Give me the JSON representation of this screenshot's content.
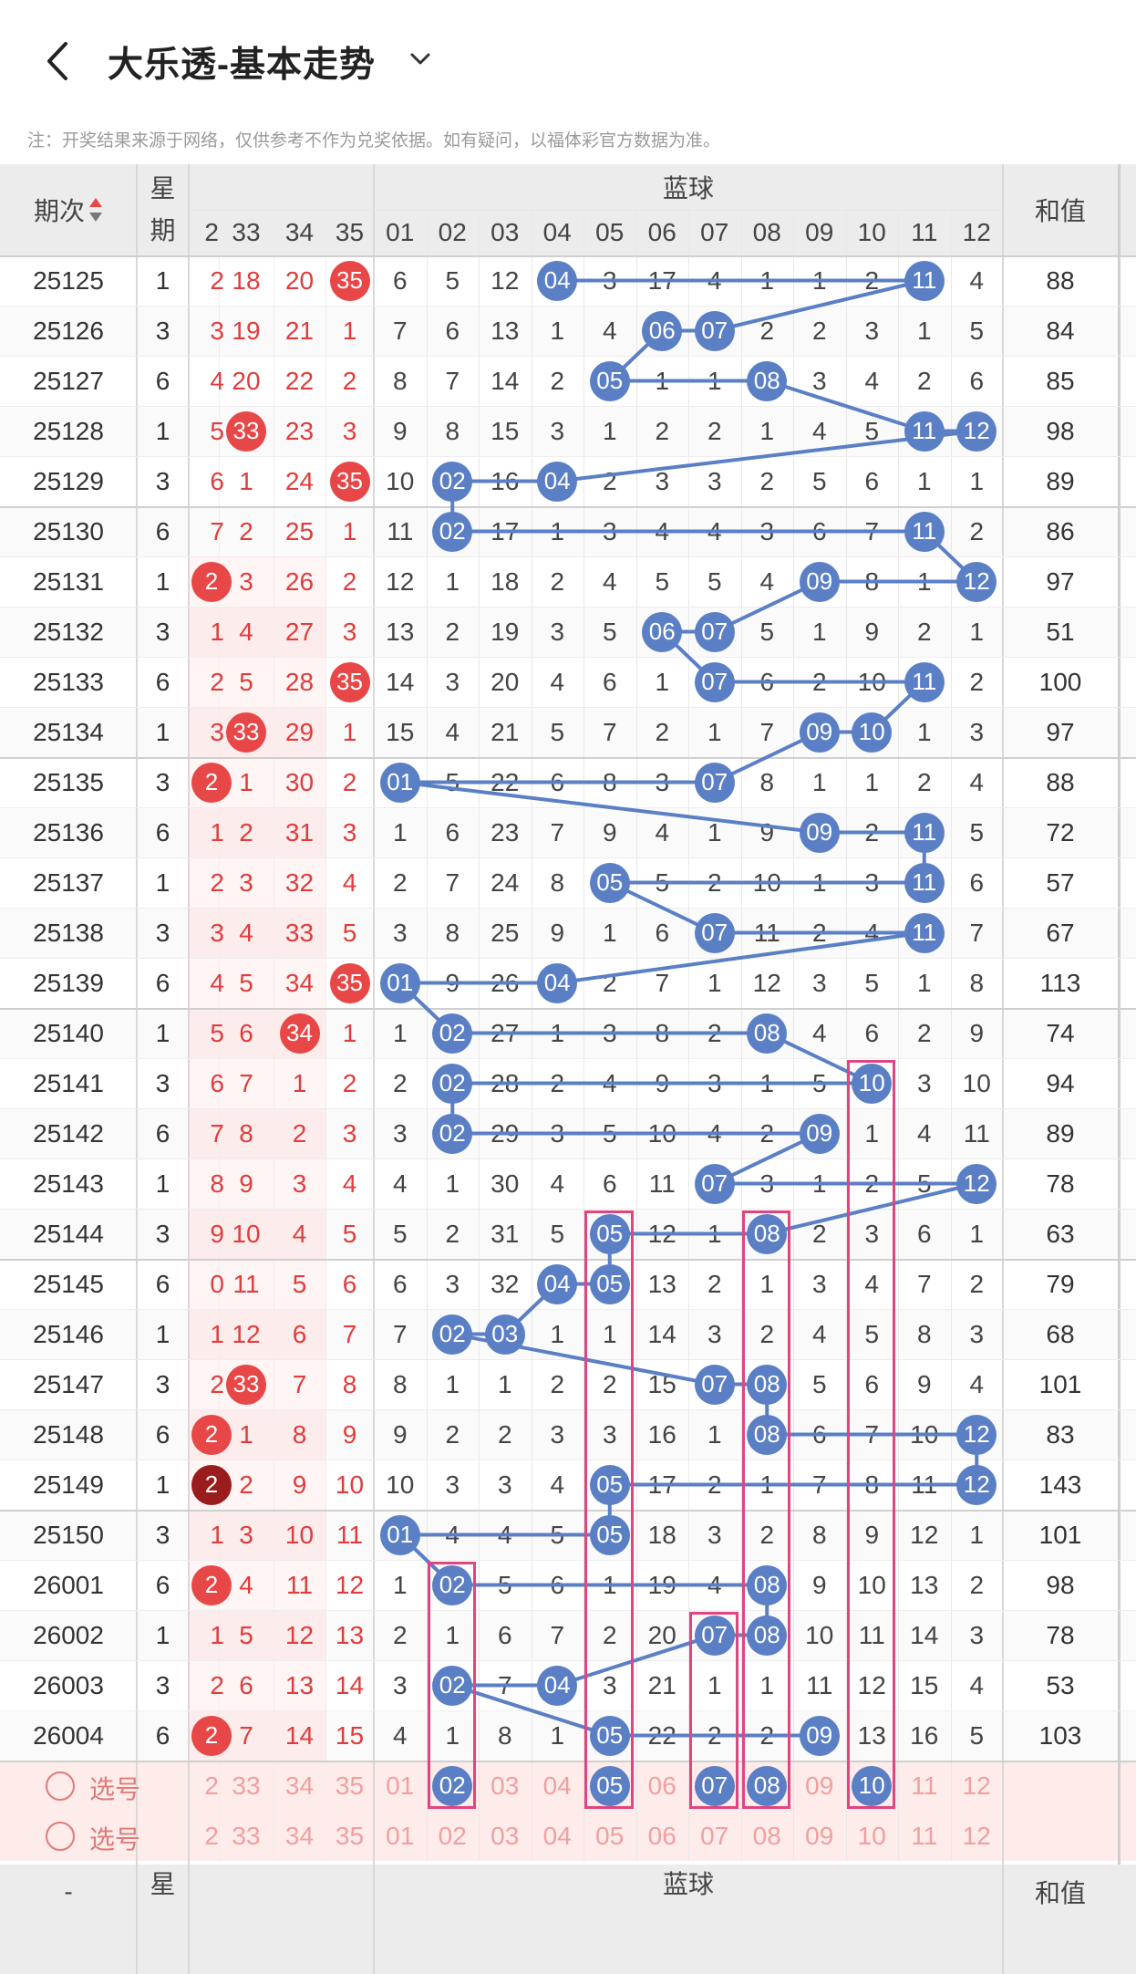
{
  "app": {
    "title": "大乐透-基本走势",
    "notice": "注：开奖结果来源于网络，仅供参考不作为兑奖依据。如有疑问，以福体彩官方数据为准。"
  },
  "icons": {
    "back": "chevron-left-icon",
    "dropdown": "chevron-down-icon",
    "sort": "sort-arrows-icon",
    "select": "radio-circle-icon"
  },
  "colors": {
    "blue_ball": "#5b7fc5",
    "red_ball": "#e84747",
    "dark_red_ball": "#9b1c1c",
    "red_text": "#e03c3c",
    "highlight_box": "#e0457f",
    "header_bg": "#ececec",
    "select_row_bg": "#fdece9"
  },
  "table": {
    "header": {
      "period": "期次",
      "weekday": "星期",
      "blue_group": "蓝球",
      "sum": "和值",
      "red_partial_col": "2",
      "red_cols": [
        "33",
        "34",
        "35"
      ],
      "blue_cols": [
        "01",
        "02",
        "03",
        "04",
        "05",
        "06",
        "07",
        "08",
        "09",
        "10",
        "11",
        "12"
      ]
    },
    "rows": [
      {
        "period": "25125",
        "weekday": "1",
        "red": [
          "2",
          "18",
          "20",
          "35"
        ],
        "red_hit": [
          false,
          false,
          false,
          true
        ],
        "blue": [
          "04",
          "3",
          "17",
          "4",
          "1",
          "1",
          "2",
          "11",
          "4"
        ],
        "sum": "88"
      },
      {
        "period": "25126",
        "weekday": "3",
        "red": [
          "3",
          "19",
          "21",
          "1"
        ],
        "sum": "84"
      },
      {
        "period": "25127",
        "weekday": "6",
        "red": [
          "4",
          "20",
          "22",
          "2"
        ],
        "sum": "85"
      },
      {
        "period": "25128",
        "weekday": "1",
        "red": [
          "5",
          "33",
          "23",
          "3"
        ],
        "sum": "98"
      },
      {
        "period": "25129",
        "weekday": "3",
        "red": [
          "6",
          "1",
          "24",
          "35"
        ],
        "sum": "89"
      },
      {
        "period": "25130",
        "weekday": "6",
        "red": [
          "7",
          "2",
          "25",
          "1"
        ],
        "sum": "86"
      },
      {
        "period": "25131",
        "weekday": "1",
        "red": [
          "2",
          "3",
          "26",
          "2"
        ],
        "sum": "97"
      },
      {
        "period": "25132",
        "weekday": "3",
        "red": [
          "1",
          "4",
          "27",
          "3"
        ],
        "sum": "51"
      },
      {
        "period": "25133",
        "weekday": "6",
        "red": [
          "2",
          "5",
          "28",
          "35"
        ],
        "sum": "100"
      },
      {
        "period": "25134",
        "weekday": "1",
        "red": [
          "3",
          "33",
          "29",
          "1"
        ],
        "sum": "97"
      },
      {
        "period": "25135",
        "weekday": "3",
        "red": [
          "2",
          "1",
          "30",
          "2"
        ],
        "sum": "88"
      },
      {
        "period": "25136",
        "weekday": "6",
        "red": [
          "1",
          "2",
          "31",
          "3"
        ],
        "sum": "72"
      },
      {
        "period": "25137",
        "weekday": "1",
        "red": [
          "2",
          "3",
          "32",
          "4"
        ],
        "sum": "57"
      },
      {
        "period": "25138",
        "weekday": "3",
        "red": [
          "3",
          "4",
          "33",
          "5"
        ],
        "sum": "67"
      },
      {
        "period": "25139",
        "weekday": "6",
        "red": [
          "4",
          "5",
          "34",
          "35"
        ],
        "sum": "113"
      },
      {
        "period": "25140",
        "weekday": "1",
        "red": [
          "5",
          "6",
          "34",
          "1"
        ],
        "sum": "74"
      },
      {
        "period": "25141",
        "weekday": "3",
        "red": [
          "6",
          "7",
          "1",
          "2"
        ],
        "sum": "94"
      },
      {
        "period": "25142",
        "weekday": "6",
        "red": [
          "7",
          "8",
          "2",
          "3"
        ],
        "sum": "89"
      },
      {
        "period": "25143",
        "weekday": "1",
        "red": [
          "8",
          "9",
          "3",
          "4"
        ],
        "sum": "78"
      },
      {
        "period": "25144",
        "weekday": "3",
        "red": [
          "9",
          "10",
          "4",
          "5"
        ],
        "sum": "63"
      },
      {
        "period": "25145",
        "weekday": "6",
        "red": [
          "0",
          "11",
          "5",
          "6"
        ],
        "sum": "79"
      },
      {
        "period": "25146",
        "weekday": "1",
        "red": [
          "1",
          "12",
          "6",
          "7"
        ],
        "sum": "68"
      },
      {
        "period": "25147",
        "weekday": "3",
        "red": [
          "2",
          "33",
          "7",
          "8"
        ],
        "sum": "101"
      },
      {
        "period": "25148",
        "weekday": "6",
        "red": [
          "2",
          "1",
          "8",
          "9"
        ],
        "sum": "83"
      },
      {
        "period": "25149",
        "weekday": "1",
        "red": [
          "2",
          "2",
          "9",
          "10"
        ],
        "sum": "143"
      },
      {
        "period": "25150",
        "weekday": "3",
        "red": [
          "1",
          "3",
          "10",
          "11"
        ],
        "sum": "101"
      },
      {
        "period": "26001",
        "weekday": "6",
        "red": [
          "2",
          "4",
          "11",
          "12"
        ],
        "sum": "98"
      },
      {
        "period": "26002",
        "weekday": "1",
        "red": [
          "1",
          "5",
          "12",
          "13"
        ],
        "sum": "78"
      },
      {
        "period": "26003",
        "weekday": "3",
        "red": [
          "2",
          "6",
          "13",
          "14"
        ],
        "sum": "53"
      },
      {
        "period": "26004",
        "weekday": "6",
        "red": [
          "2",
          "7",
          "14",
          "15"
        ],
        "sum": "103"
      }
    ],
    "blue_matrix": [
      [
        "6",
        "5",
        "12",
        "04",
        "3",
        "17",
        "4",
        "1",
        "1",
        "2",
        "11",
        "4"
      ],
      [
        "7",
        "6",
        "13",
        "1",
        "4",
        "06",
        "07",
        "2",
        "2",
        "3",
        "1",
        "5"
      ],
      [
        "8",
        "7",
        "14",
        "2",
        "05",
        "1",
        "1",
        "08",
        "3",
        "4",
        "2",
        "6"
      ],
      [
        "9",
        "8",
        "15",
        "3",
        "1",
        "2",
        "2",
        "1",
        "4",
        "5",
        "11",
        "12"
      ],
      [
        "10",
        "02",
        "16",
        "04",
        "2",
        "3",
        "3",
        "2",
        "5",
        "6",
        "1",
        "1"
      ],
      [
        "11",
        "02",
        "17",
        "1",
        "3",
        "4",
        "4",
        "3",
        "6",
        "7",
        "11",
        "2"
      ],
      [
        "12",
        "1",
        "18",
        "2",
        "4",
        "5",
        "5",
        "4",
        "09",
        "8",
        "1",
        "12"
      ],
      [
        "13",
        "2",
        "19",
        "3",
        "5",
        "06",
        "07",
        "5",
        "1",
        "9",
        "2",
        "1"
      ],
      [
        "14",
        "3",
        "20",
        "4",
        "6",
        "1",
        "07",
        "6",
        "2",
        "10",
        "11",
        "2"
      ],
      [
        "15",
        "4",
        "21",
        "5",
        "7",
        "2",
        "1",
        "7",
        "09",
        "10",
        "1",
        "3"
      ],
      [
        "01",
        "5",
        "22",
        "6",
        "8",
        "3",
        "07",
        "8",
        "1",
        "1",
        "2",
        "4"
      ],
      [
        "1",
        "6",
        "23",
        "7",
        "9",
        "4",
        "1",
        "9",
        "09",
        "2",
        "11",
        "5"
      ],
      [
        "2",
        "7",
        "24",
        "8",
        "05",
        "5",
        "2",
        "10",
        "1",
        "3",
        "11",
        "6"
      ],
      [
        "3",
        "8",
        "25",
        "9",
        "1",
        "6",
        "07",
        "11",
        "2",
        "4",
        "11",
        "7"
      ],
      [
        "01",
        "9",
        "26",
        "04",
        "2",
        "7",
        "1",
        "12",
        "3",
        "5",
        "1",
        "8"
      ],
      [
        "1",
        "02",
        "27",
        "1",
        "3",
        "8",
        "2",
        "08",
        "4",
        "6",
        "2",
        "9"
      ],
      [
        "2",
        "02",
        "28",
        "2",
        "4",
        "9",
        "3",
        "1",
        "5",
        "10",
        "3",
        "10"
      ],
      [
        "3",
        "02",
        "29",
        "3",
        "5",
        "10",
        "4",
        "2",
        "09",
        "1",
        "4",
        "11"
      ],
      [
        "4",
        "1",
        "30",
        "4",
        "6",
        "11",
        "07",
        "3",
        "1",
        "2",
        "5",
        "12"
      ],
      [
        "5",
        "2",
        "31",
        "5",
        "05",
        "12",
        "1",
        "08",
        "2",
        "3",
        "6",
        "1"
      ],
      [
        "6",
        "3",
        "32",
        "04",
        "05",
        "13",
        "2",
        "1",
        "3",
        "4",
        "7",
        "2"
      ],
      [
        "7",
        "02",
        "03",
        "1",
        "1",
        "14",
        "3",
        "2",
        "4",
        "5",
        "8",
        "3"
      ],
      [
        "8",
        "1",
        "1",
        "2",
        "2",
        "15",
        "07",
        "08",
        "5",
        "6",
        "9",
        "4"
      ],
      [
        "9",
        "2",
        "2",
        "3",
        "3",
        "16",
        "1",
        "08",
        "6",
        "7",
        "10",
        "12"
      ],
      [
        "10",
        "3",
        "3",
        "4",
        "05",
        "17",
        "2",
        "1",
        "7",
        "8",
        "11",
        "12"
      ],
      [
        "01",
        "4",
        "4",
        "5",
        "05",
        "18",
        "3",
        "2",
        "8",
        "9",
        "12",
        "1"
      ],
      [
        "1",
        "02",
        "5",
        "6",
        "1",
        "19",
        "4",
        "08",
        "9",
        "10",
        "13",
        "2"
      ],
      [
        "2",
        "1",
        "6",
        "7",
        "2",
        "20",
        "07",
        "08",
        "10",
        "11",
        "14",
        "3"
      ],
      [
        "3",
        "02",
        "7",
        "04",
        "3",
        "21",
        "1",
        "1",
        "11",
        "12",
        "15",
        "4"
      ],
      [
        "4",
        "1",
        "8",
        "1",
        "05",
        "22",
        "2",
        "2",
        "09",
        "13",
        "16",
        "5"
      ]
    ],
    "blue_hits": [
      [
        3,
        10
      ],
      [
        5,
        6
      ],
      [
        4,
        7
      ],
      [
        10,
        11
      ],
      [
        1,
        3
      ],
      [
        1,
        10
      ],
      [
        8,
        11
      ],
      [
        5,
        6
      ],
      [
        6,
        10
      ],
      [
        8,
        9
      ],
      [
        0,
        6
      ],
      [
        8,
        10
      ],
      [
        4,
        10
      ],
      [
        6,
        10
      ],
      [
        0,
        3
      ],
      [
        1,
        7
      ],
      [
        1,
        9
      ],
      [
        1,
        8
      ],
      [
        6,
        11
      ],
      [
        4,
        7
      ],
      [
        3,
        4
      ],
      [
        1,
        2
      ],
      [
        6,
        7
      ],
      [
        7,
        11
      ],
      [
        4,
        11
      ],
      [
        0,
        4
      ],
      [
        1,
        7
      ],
      [
        6,
        7
      ],
      [
        1,
        3
      ],
      [
        4,
        8
      ]
    ],
    "red_hits": [
      [
        false,
        false,
        false,
        true
      ],
      [
        false,
        false,
        false,
        false
      ],
      [
        false,
        false,
        false,
        false
      ],
      [
        false,
        true,
        false,
        false
      ],
      [
        false,
        false,
        false,
        true
      ],
      [
        false,
        false,
        false,
        false
      ],
      [
        true,
        false,
        false,
        false
      ],
      [
        false,
        false,
        false,
        false
      ],
      [
        false,
        false,
        false,
        true
      ],
      [
        false,
        true,
        false,
        false
      ],
      [
        true,
        false,
        false,
        false
      ],
      [
        false,
        false,
        false,
        false
      ],
      [
        false,
        false,
        false,
        false
      ],
      [
        false,
        false,
        false,
        false
      ],
      [
        false,
        false,
        false,
        true
      ],
      [
        false,
        false,
        true,
        false
      ],
      [
        false,
        false,
        false,
        false
      ],
      [
        false,
        false,
        false,
        false
      ],
      [
        false,
        false,
        false,
        false
      ],
      [
        false,
        false,
        false,
        false
      ],
      [
        false,
        false,
        false,
        false
      ],
      [
        false,
        false,
        false,
        false
      ],
      [
        false,
        true,
        false,
        false
      ],
      [
        true,
        false,
        false,
        false
      ],
      [
        true,
        false,
        false,
        false
      ],
      [
        false,
        false,
        false,
        false
      ],
      [
        true,
        false,
        false,
        false
      ],
      [
        false,
        false,
        false,
        false
      ],
      [
        false,
        false,
        false,
        false
      ],
      [
        true,
        false,
        false,
        false
      ]
    ],
    "selection_rows": [
      {
        "label": "选号",
        "red": [
          "2",
          "33",
          "34",
          "35"
        ],
        "selected_blue": [
          "02",
          "05",
          "07",
          "08",
          "10"
        ]
      },
      {
        "label": "选号",
        "red": [
          "2",
          "33",
          "34",
          "35"
        ],
        "selected_blue": []
      }
    ],
    "footer": {
      "weekday": "星",
      "blue_group": "蓝球",
      "sum": "和值",
      "period": "-"
    }
  }
}
